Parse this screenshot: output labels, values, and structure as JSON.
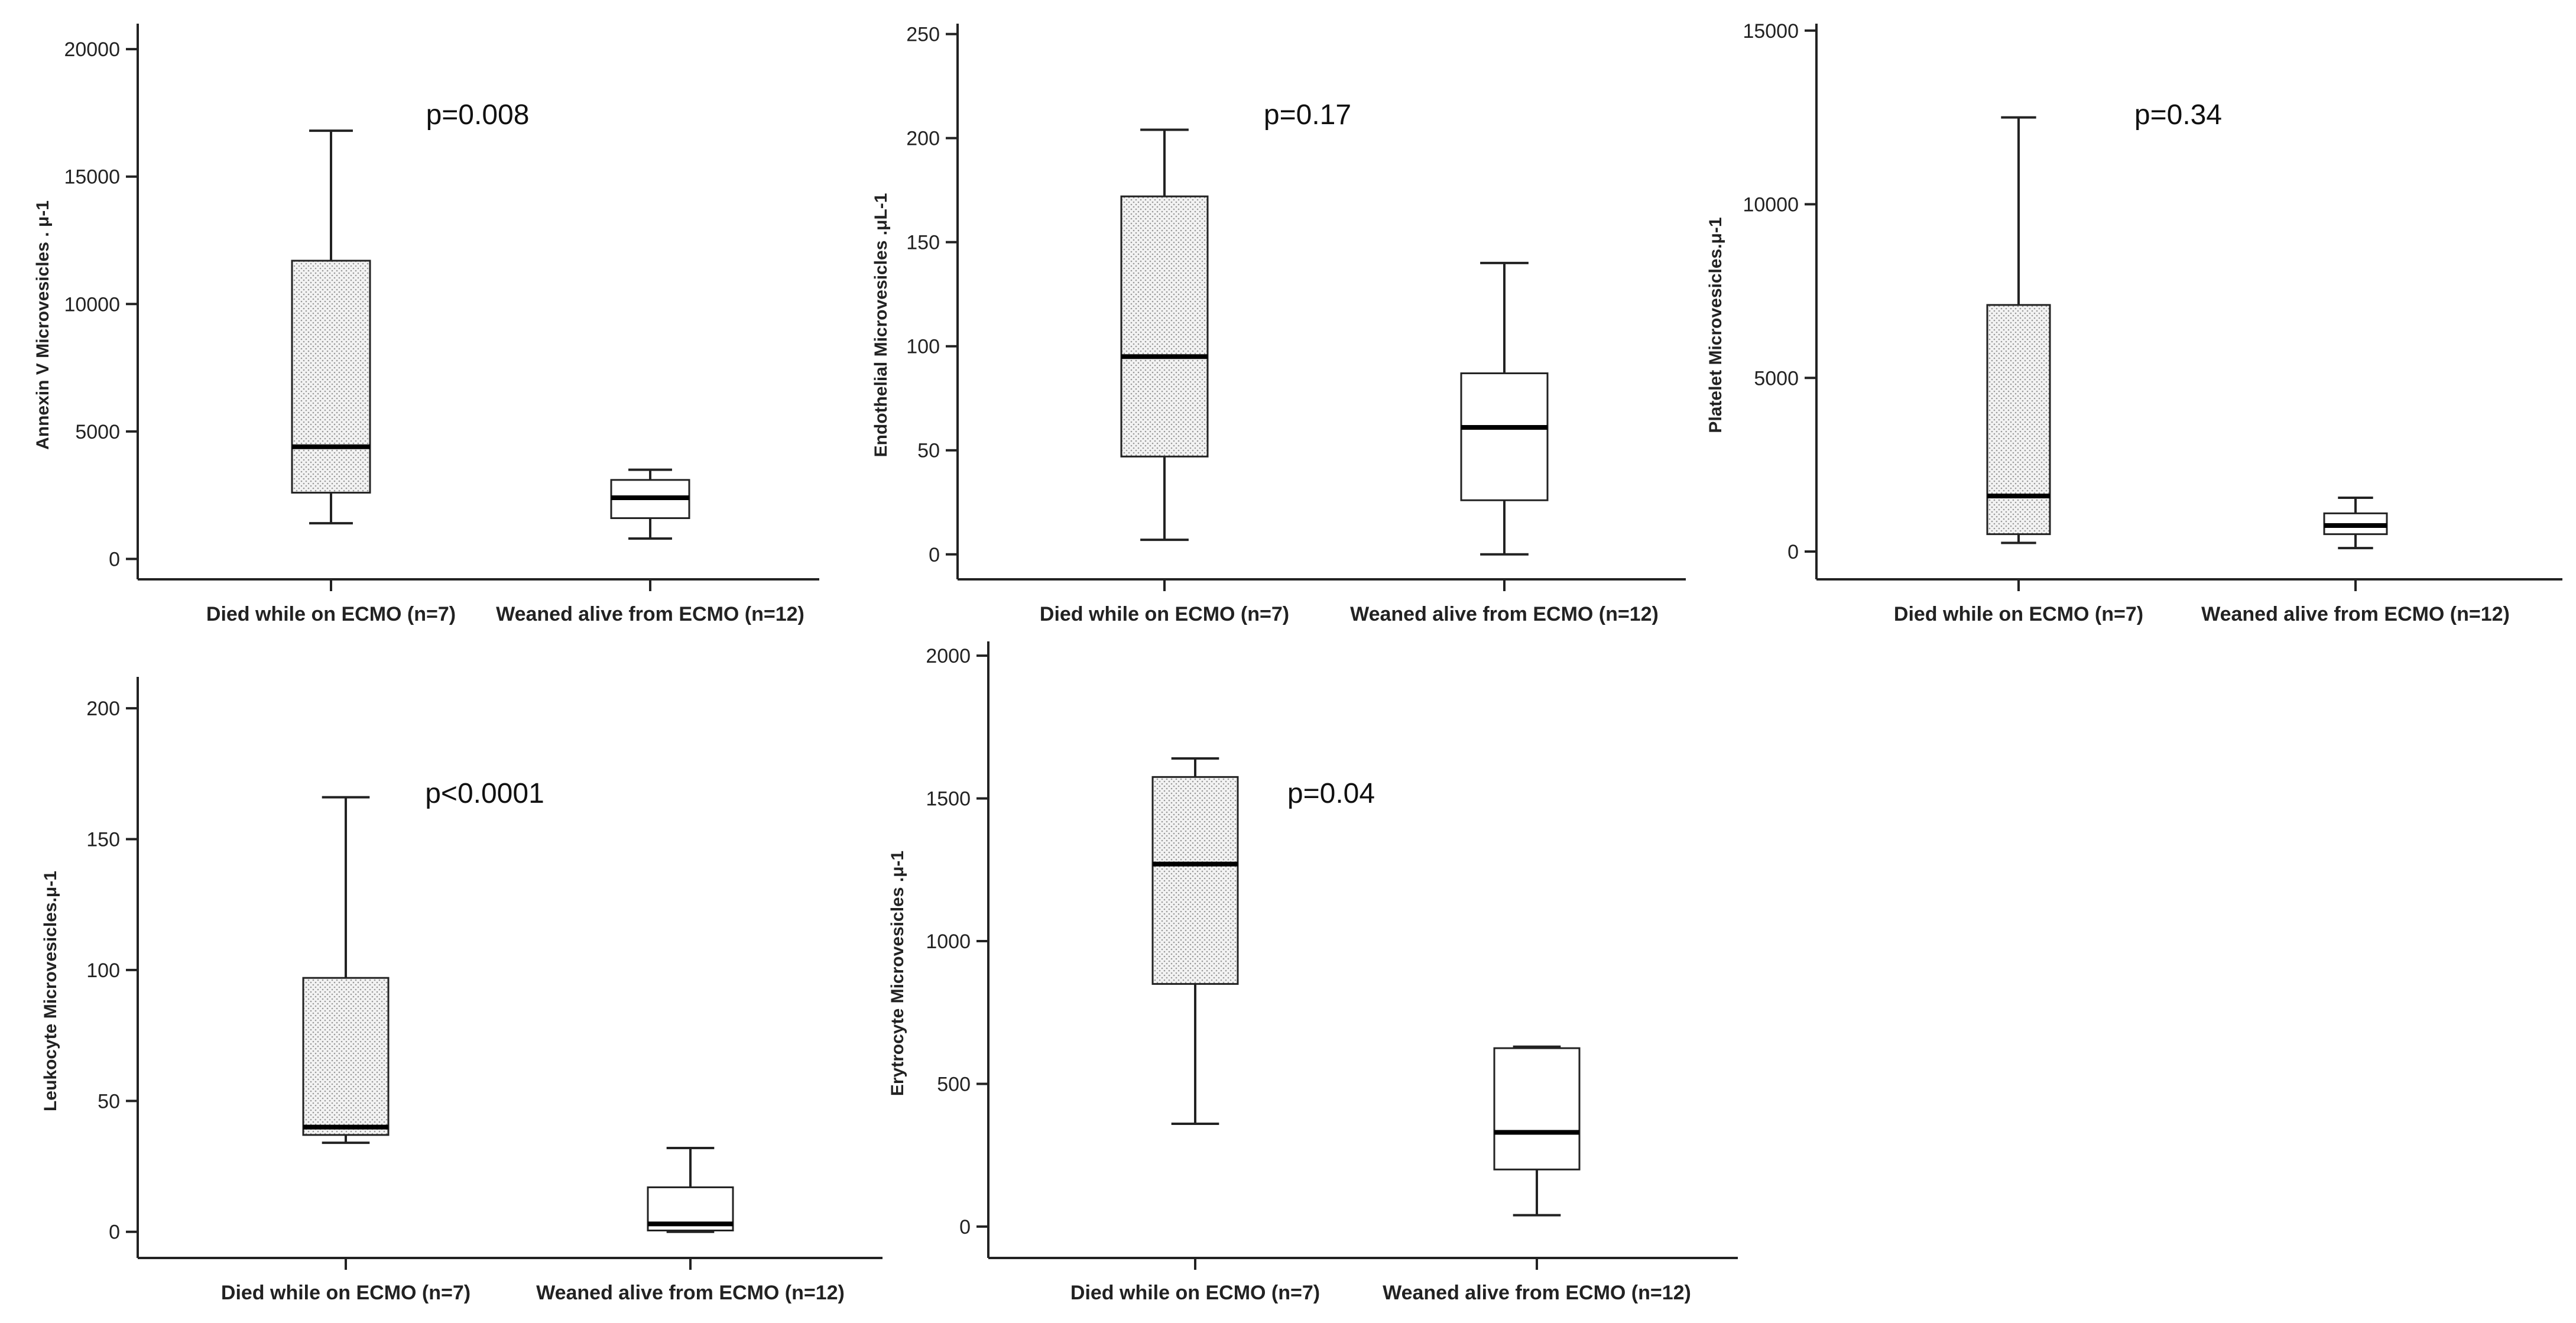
{
  "chart_data": [
    {
      "type": "box",
      "ylabel": "Annexin V Microvesicles . μ-1",
      "ylim": [
        -800,
        21000
      ],
      "yticks": [
        0,
        5000,
        10000,
        15000,
        20000
      ],
      "annotation": "p=0.008",
      "categories": [
        "Died while on ECMO (n=7)",
        "Weaned alive from ECMO (n=12)"
      ],
      "boxes": [
        {
          "min": 1400,
          "q1": 2600,
          "median": 4400,
          "q3": 11700,
          "max": 16800,
          "fill": "pattern"
        },
        {
          "min": 800,
          "q1": 1600,
          "median": 2400,
          "q3": 3100,
          "max": 3500,
          "fill": "white"
        }
      ]
    },
    {
      "type": "box",
      "ylabel": "Endothelial Microvesicles .μL-1",
      "ylim": [
        -12,
        255
      ],
      "yticks": [
        0,
        50,
        100,
        150,
        200,
        250
      ],
      "annotation": "p=0.17",
      "categories": [
        "Died while on ECMO (n=7)",
        "Weaned alive from ECMO (n=12)"
      ],
      "boxes": [
        {
          "min": 7,
          "q1": 47,
          "median": 95,
          "q3": 172,
          "max": 204,
          "fill": "pattern"
        },
        {
          "min": 0,
          "q1": 26,
          "median": 61,
          "q3": 87,
          "max": 140,
          "fill": "white"
        }
      ]
    },
    {
      "type": "box",
      "ylabel": "Platelet Microvesicles.μ-1",
      "ylim": [
        -800,
        15200
      ],
      "yticks": [
        0,
        5000,
        10000,
        15000
      ],
      "annotation": "p=0.34",
      "categories": [
        "Died while on ECMO (n=7)",
        "Weaned alive from ECMO (n=12)"
      ],
      "boxes": [
        {
          "min": 250,
          "q1": 500,
          "median": 1600,
          "q3": 7100,
          "max": 12500,
          "fill": "pattern"
        },
        {
          "min": 100,
          "q1": 500,
          "median": 750,
          "q3": 1100,
          "max": 1550,
          "fill": "white"
        }
      ]
    },
    {
      "type": "box",
      "ylabel": "Leukocyte Microvesicles.μ-1",
      "ylim": [
        -10,
        212
      ],
      "yticks": [
        0,
        50,
        100,
        150,
        200
      ],
      "annotation": "p<0.0001",
      "categories": [
        "Died while on ECMO (n=7)",
        "Weaned alive from ECMO (n=12)"
      ],
      "boxes": [
        {
          "min": 34,
          "q1": 37,
          "median": 40,
          "q3": 97,
          "max": 166,
          "fill": "pattern"
        },
        {
          "min": 0,
          "q1": 0.5,
          "median": 3,
          "q3": 17,
          "max": 32,
          "fill": "white"
        }
      ]
    },
    {
      "type": "box",
      "ylabel": "Erytrocyte Microvesicles .μ-1",
      "ylim": [
        -110,
        2050
      ],
      "yticks": [
        0,
        500,
        1000,
        1500,
        2000
      ],
      "annotation": "p=0.04",
      "categories": [
        "Died while on ECMO (n=7)",
        "Weaned alive from ECMO (n=12)"
      ],
      "boxes": [
        {
          "min": 360,
          "q1": 850,
          "median": 1270,
          "q3": 1575,
          "max": 1640,
          "fill": "pattern"
        },
        {
          "min": 40,
          "q1": 200,
          "median": 330,
          "q3": 625,
          "max": 630,
          "fill": "white"
        }
      ]
    }
  ]
}
